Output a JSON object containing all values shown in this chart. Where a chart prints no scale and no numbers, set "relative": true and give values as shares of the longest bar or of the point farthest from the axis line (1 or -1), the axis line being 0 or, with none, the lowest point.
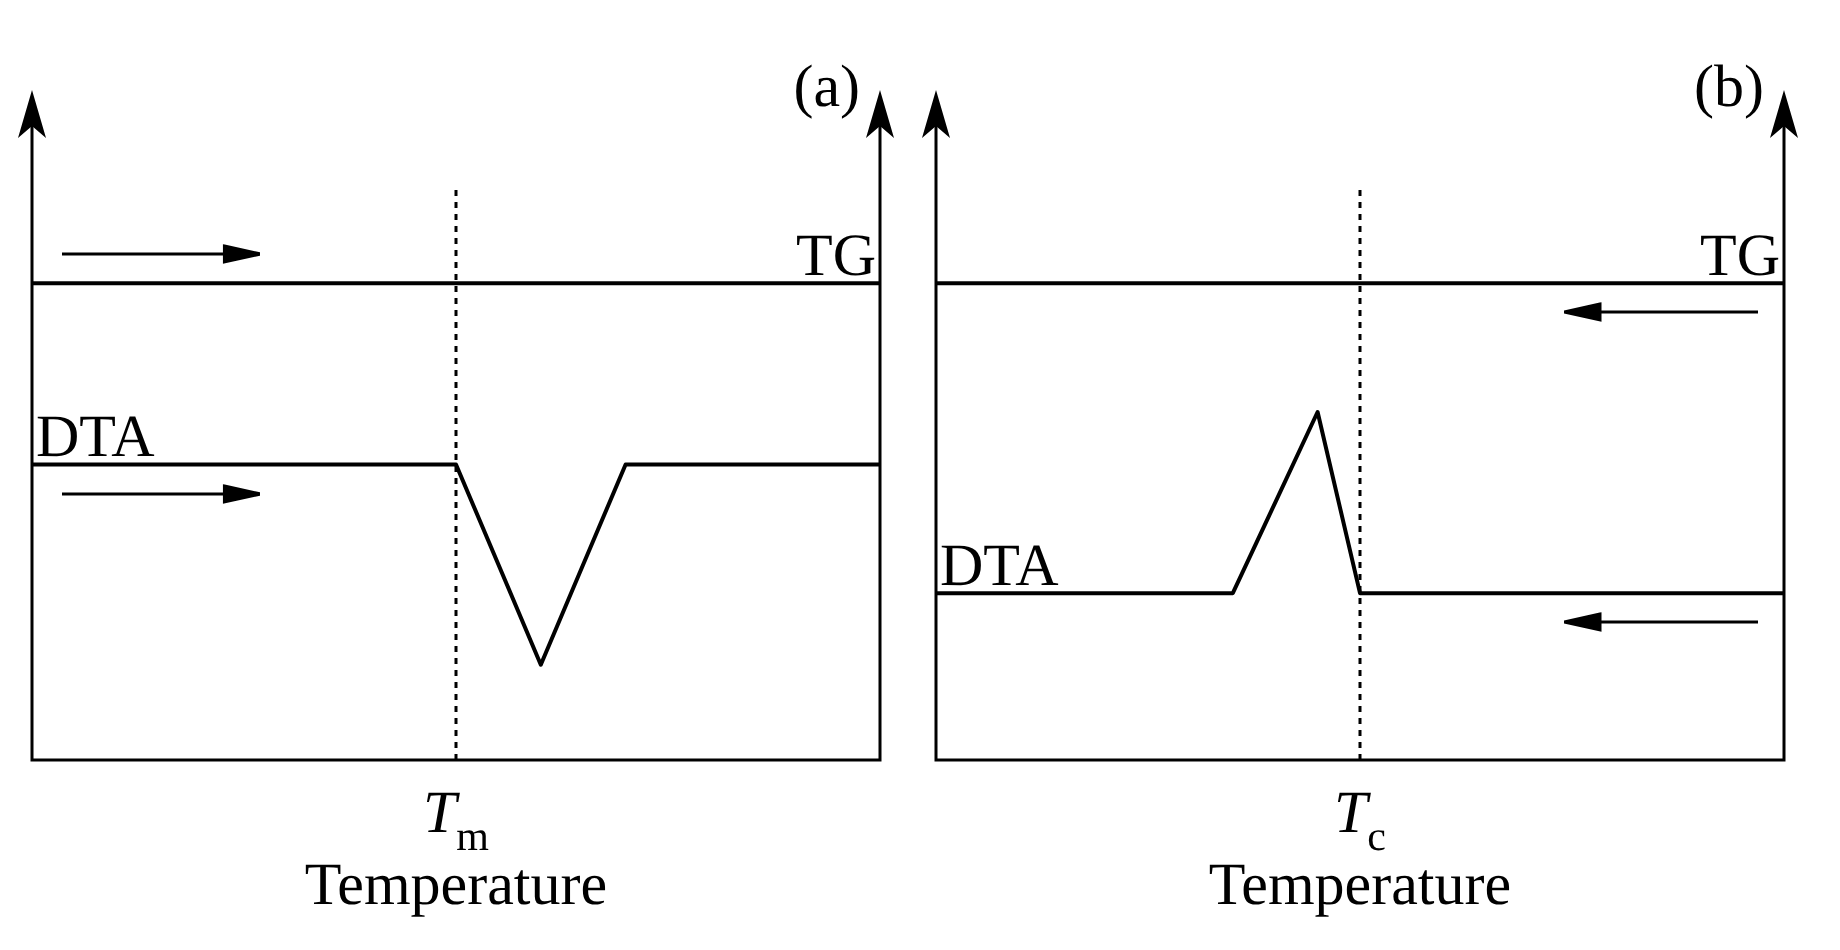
{
  "chart_data": [
    {
      "type": "line",
      "title": "(a)",
      "xlabel": "Temperature",
      "relative": true,
      "legend": false,
      "marker": "none",
      "annotations": [
        "T$_{m}$"
      ],
      "categories": [
        null,
        null,
        null,
        null,
        null,
        null,
        null,
        null,
        null,
        null,
        null,
        null,
        null,
        null,
        null,
        null,
        null,
        null,
        null,
        null,
        null
      ],
      "series": [
        {
          "name": "TG",
          "color": "#000000",
          "values": [
            1,
            1,
            1,
            1,
            1,
            1,
            1,
            1,
            1,
            1,
            1,
            1,
            1,
            1,
            1,
            1,
            1,
            1,
            1,
            1,
            1
          ]
        },
        {
          "name": "DTA",
          "color": "#000000",
          "values": [
            0.62,
            0.62,
            0.62,
            0.62,
            0.62,
            0.62,
            0.62,
            0.62,
            0.62,
            0.62,
            0.62,
            0.41,
            0.2,
            0.41,
            0.62,
            0.62,
            0.62,
            0.62,
            0.62,
            0.62,
            0.62
          ]
        }
      ]
    },
    {
      "type": "line",
      "title": "(b)",
      "xlabel": "Temperature",
      "relative": true,
      "legend": false,
      "marker": "none",
      "annotations": [
        "T$_{c}$"
      ],
      "categories": [
        null,
        null,
        null,
        null,
        null,
        null,
        null,
        null,
        null,
        null,
        null,
        null,
        null,
        null,
        null,
        null,
        null,
        null,
        null,
        null,
        null
      ],
      "series": [
        {
          "name": "TG",
          "color": "#000000",
          "values": [
            1,
            1,
            1,
            1,
            1,
            1,
            1,
            1,
            1,
            1,
            1,
            1,
            1,
            1,
            1,
            1,
            1,
            1,
            1,
            1,
            1
          ]
        },
        {
          "name": "DTA",
          "color": "#000000",
          "values": [
            0.35,
            0.35,
            0.35,
            0.35,
            0.35,
            0.35,
            0.35,
            0.35,
            0.54,
            0.73,
            0.35,
            0.35,
            0.35,
            0.35,
            0.35,
            0.35,
            0.35,
            0.35,
            0.35,
            0.35,
            0.35
          ]
        }
      ]
    }
  ]
}
